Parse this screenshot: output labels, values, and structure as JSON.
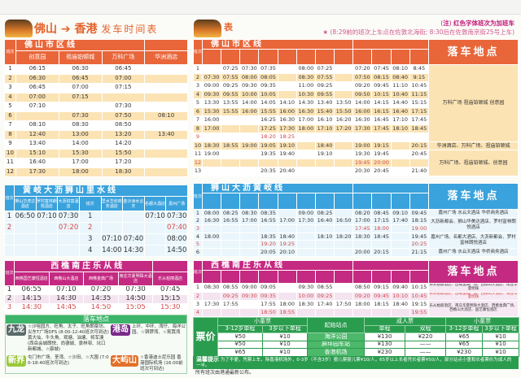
{
  "title": {
    "left": "佛山 ➔ 香港",
    "right": "发车时间表",
    "right_page_fragment": "表"
  },
  "note": {
    "marker": "注",
    "line1": "红色字体班次为加班车",
    "line2": "(8:29前的班次上车点在佐敦北海街; 8:30后在佐敦南京街25号上车)"
  },
  "colors": {
    "orange": "#e9663a",
    "blue": "#3aa2dc",
    "magenta": "#c42a82",
    "green": "#2a9c4e",
    "extra": "#d24a4a"
  },
  "left_foshan": {
    "group": "佛山市区线",
    "no_label": "班次",
    "columns": [
      "创意园",
      "祖庙铂顿城",
      "万科广场",
      "华洲酒店"
    ],
    "rows": [
      [
        "1",
        "06:15",
        "06:30",
        "06:45",
        ""
      ],
      [
        "2",
        "06:30",
        "06:45",
        "07:00",
        ""
      ],
      [
        "3",
        "06:45",
        "07:00",
        "07:15",
        ""
      ],
      [
        "4",
        "07:00",
        "07:15",
        "",
        ""
      ],
      [
        "5",
        "07:10",
        "",
        "07:30",
        ""
      ],
      [
        "6",
        "",
        "07:30",
        "07:50",
        "08:10"
      ],
      [
        "7",
        "08:10",
        "08:30",
        "08:50",
        ""
      ],
      [
        "8",
        "12:40",
        "13:00",
        "13:20",
        "13:40"
      ],
      [
        "9",
        "13:40",
        "14:00",
        "14:20",
        ""
      ],
      [
        "10",
        "15:10",
        "15:30",
        "15:50",
        ""
      ],
      [
        "11",
        "16:40",
        "17:00",
        "17:20",
        ""
      ],
      [
        "12",
        "17:30",
        "18:00",
        "18:30",
        ""
      ]
    ]
  },
  "left_blue": {
    "group": "黄岐大沥狮山里水线",
    "no_label": "班次",
    "columns_a": [
      "狮山华虎达酒店",
      "罗村富林朗悦酒店",
      "大沥财富酒店"
    ],
    "columns_b": [
      "里水华欣商务酒店",
      "金沙洲水云天",
      "名都大酒店",
      "嘉州广场"
    ],
    "rows": [
      [
        "1",
        "06:50",
        "07:10",
        "07:30",
        "1",
        "",
        "",
        "07:10",
        "07:30"
      ],
      [
        "2",
        "",
        "",
        "07:20",
        "2",
        "",
        "",
        "",
        "07:40"
      ],
      [
        "",
        "",
        "",
        "",
        "3",
        "07:10",
        "07:40",
        "",
        "08:00"
      ],
      [
        "",
        "",
        "",
        "",
        "4",
        "14:00",
        "14:30",
        "",
        "14:50"
      ]
    ],
    "extra_rows": [
      1
    ]
  },
  "left_magenta": {
    "group": "西樵南庄乐从线",
    "no_label": "班次",
    "columns": [
      "西樵国艺康恒酒店",
      "西樵山大酒店",
      "西樵金典广场",
      "南庄华夏明珠大酒店",
      "乐从柏丽酒店"
    ],
    "rows": [
      [
        "1",
        "06:55",
        "07:10",
        "07:20",
        "07:30",
        "07:45"
      ],
      [
        "2",
        "14:15",
        "14:30",
        "14:35",
        "14:50",
        "15:15"
      ],
      [
        "3",
        "14:30",
        "14:45",
        "14:50",
        "15:05",
        "15:30"
      ]
    ],
    "extra_rows": [
      2
    ]
  },
  "drop_points": {
    "title": "落车地点",
    "regions": [
      {
        "name": "九龙",
        "text": "☆沙咀园方、旺角、太子、旺角朗豪坊、尖东T广场DFS (8:00-12:40班次可到达) 黄大仙、牛头角、观塘、油塘、将军澳(西岳会城朗悦、尚德城、景林邨、坑口新都城、☆康城)"
      },
      {
        "name": "港岛",
        "text": "上环、中环、湾仔、海洋公园、☆铜锣湾、☆筲箕湾"
      },
      {
        "name": "新界",
        "text": "屯门市广场、荃湾、☆沙田、☆大围 (7:00-18:40班次可到达)"
      },
      {
        "name": "大屿山",
        "text": "☆香港迪士尼乐园 香港国际机场 (16:00前班次可到达)"
      }
    ]
  },
  "right_foshan": {
    "group": "佛山市区线",
    "no_label": "班次",
    "drop_label": "落车地点",
    "rows": [
      [
        "1",
        "",
        "07:25",
        "07:30",
        "07:35",
        "",
        "08:00",
        "07:25",
        "",
        "07:20",
        "07:45",
        "08:10",
        "8:45"
      ],
      [
        "2",
        "07:30",
        "07:55",
        "08:00",
        "08:05",
        "",
        "08:30",
        "07:55",
        "",
        "07:50",
        "08:15",
        "08:40",
        "9:15"
      ],
      [
        "3",
        "09:00",
        "09:25",
        "09:30",
        "09:35",
        "",
        "11:00",
        "09:25",
        "",
        "09:20",
        "09:45",
        "11:10",
        "10:45"
      ],
      [
        "4",
        "09:30",
        "09:55",
        "10:00",
        "10:05",
        "",
        "10:30",
        "09:55",
        "",
        "09:50",
        "10:15",
        "10:40",
        "11:15"
      ],
      [
        "5",
        "13:30",
        "13:55",
        "14:00",
        "14:05",
        "14:10",
        "14:30",
        "13:40",
        "13:50",
        "14:00",
        "14:15",
        "14:40",
        "15:15"
      ],
      [
        "6",
        "15:30",
        "15:55",
        "16:00",
        "15:55",
        "16:00",
        "16:30",
        "15:40",
        "15:50",
        "16:00",
        "16:15",
        "16:40",
        "17:15"
      ],
      [
        "7",
        "16:00",
        "",
        "",
        "16:25",
        "16:30",
        "17:00",
        "16:10",
        "16:20",
        "16:30",
        "16:45",
        "17:10",
        "17:45"
      ],
      [
        "8",
        "17:00",
        "",
        "",
        "17:25",
        "17:30",
        "18:00",
        "17:10",
        "17:20",
        "17:30",
        "17:45",
        "18:10",
        "18:45"
      ],
      [
        "9",
        "",
        "",
        "",
        "18:20",
        "18:25",
        "",
        "",
        "",
        "",
        "",
        "",
        ""
      ],
      [
        "10",
        "18:30",
        "18:55",
        "19:00",
        "19:05",
        "19:10",
        "",
        "18:40",
        "",
        "19:00",
        "19:15",
        "",
        "20:15"
      ],
      [
        "11",
        "19:00",
        "",
        "",
        "19:35",
        "19:40",
        "",
        "19:10",
        "",
        "19:30",
        "19:45",
        "",
        "20:45"
      ],
      [
        "12",
        "",
        "",
        "",
        "",
        "",
        "",
        "",
        "",
        "19:45",
        "20:00",
        "",
        ""
      ],
      [
        "13",
        "",
        "",
        "",
        "20:35",
        "20:40",
        "",
        "",
        "",
        "20:30",
        "20:45",
        "",
        "21:40"
      ]
    ],
    "extra_rows": [
      8,
      11
    ],
    "drops": [
      "万科广场 祖庙铂顿城 创意园",
      "华洲酒店、万科广场、祖庙铂顿城",
      "万科广场、祖庙铂顿城、创意园"
    ]
  },
  "right_blue": {
    "group": "狮山大沥黄岐线",
    "no_label": "班次",
    "drop_label": "落车地点",
    "rows": [
      [
        "1",
        "08:00",
        "08:25",
        "08:30",
        "08:35",
        "",
        "09:00",
        "08:25",
        "",
        "08:20",
        "08:45",
        "09:10",
        "09:45"
      ],
      [
        "2",
        "16:30",
        "16:55",
        "17:00",
        "16:55",
        "17:00",
        "17:30",
        "16:40",
        "16:50",
        "17:00",
        "17:15",
        "17:40",
        "18:15"
      ],
      [
        "3",
        "",
        "",
        "",
        "",
        "",
        "",
        "",
        "",
        "17:45",
        "18:00",
        "",
        "19:00"
      ],
      [
        "4",
        "18:00",
        "",
        "",
        "18:35",
        "18:40",
        "",
        "18:10",
        "18:20",
        "18:30",
        "18:45",
        "",
        "19:45"
      ],
      [
        "5",
        "",
        "",
        "",
        "19:20",
        "19:25",
        "",
        "",
        "",
        "",
        "",
        "",
        "20:25"
      ],
      [
        "6",
        "",
        "",
        "",
        "20:05",
        "20:10",
        "",
        "",
        "",
        "20:00",
        "20:15",
        "",
        "21:15"
      ]
    ],
    "extra_rows": [
      2,
      4
    ],
    "drops": [
      "嘉州广场 水云天酒店 华侨商务酒店",
      "大沥新都会、狮山华美达酒店、罗村富林朗悦酒店",
      "嘉州广场、名都大酒店、大沥新都会、罗村富林朗悦酒店",
      "嘉州广场 水云天酒店 华侨商务酒店"
    ]
  },
  "right_magenta": {
    "group": "西樵南庄乐从线",
    "no_label": "班次",
    "drop_label": "落车地点",
    "rows": [
      [
        "1",
        "08:30",
        "08:55",
        "09:00",
        "09:05",
        "",
        "09:30",
        "08:55",
        "",
        "08:50",
        "09:15",
        "09:40",
        "10:15"
      ],
      [
        "2",
        "",
        "09:25",
        "09:30",
        "09:35",
        "",
        "10:00",
        "09:25",
        "",
        "09:20",
        "09:45",
        "10:10",
        "10:45"
      ],
      [
        "3",
        "17:30",
        "17:55",
        "",
        "17:55",
        "18:00",
        "18:30",
        "17:40",
        "17:50",
        "18:00",
        "18:15",
        "18:40",
        "19:15"
      ],
      [
        "4",
        "",
        "",
        "",
        "18:50",
        "18:55",
        "",
        "",
        "",
        "",
        "",
        "",
        "19:55"
      ]
    ],
    "extra_rows": [
      1,
      3
    ],
    "drops": [
      "乐从柏丽酒店、西樵金典广场、西樵山大酒店、南庄华夏明珠",
      "乐从柏丽酒店、西樵金典广场、西樵山大酒店、南庄华夏明珠",
      "乐从柏丽酒店、南庄华夏明珠大酒店、西樵金典广场、西樵山大酒店、国艺康恒酒店"
    ]
  },
  "price": {
    "label": "票价",
    "child": "小童票",
    "child_a": "3-12岁单程",
    "child_b": "3岁以下单程",
    "origin": "起始站点",
    "adult": "成人票",
    "single": "单程",
    "return": "双程",
    "left_rows": [
      [
        "¥50",
        "¥10"
      ],
      [
        "¥50",
        "¥10"
      ],
      [
        "¥65",
        "¥10"
      ]
    ],
    "right_rows": [
      [
        "海洋公园",
        "¥130",
        "¥220",
        "¥65",
        "¥10"
      ],
      [
        "屏坪园车站",
        "¥130",
        "——",
        "¥65",
        "¥10"
      ],
      [
        "香港机场",
        "¥230",
        "——",
        "¥230",
        "¥10"
      ]
    ],
    "notice_label": "温馨提示",
    "notice": "为了不便，凭票上车，除香港机场外，0-3岁（不含3岁）婴儿票婴儿票¥10/人，65岁以上长者凭长者票¥50/人，部分站点小童和长者票价为成人的一半。",
    "footer": "所有班次由港通最新公布。"
  }
}
